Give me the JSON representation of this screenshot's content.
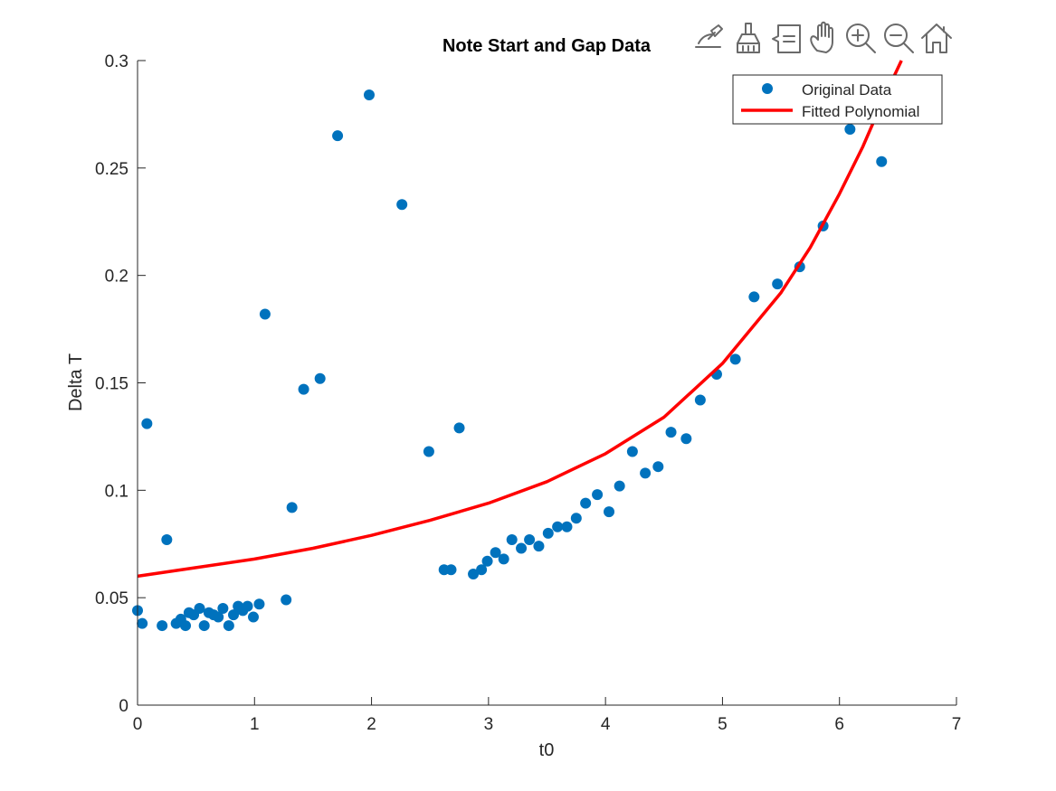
{
  "chart_data": {
    "type": "scatter",
    "title": "Note Start and Gap Data",
    "xlabel": "t0",
    "ylabel": "Delta T",
    "xlim": [
      0,
      7
    ],
    "ylim": [
      0,
      0.3
    ],
    "xticks": [
      "0",
      "1",
      "2",
      "3",
      "4",
      "5",
      "6",
      "7"
    ],
    "yticks": [
      "0",
      "0.05",
      "0.1",
      "0.15",
      "0.2",
      "0.25",
      "0.3"
    ],
    "legend_position": "top-right",
    "series": [
      {
        "name": "Original Data",
        "style": "markers",
        "color": "#0072BD",
        "points": [
          [
            0.0,
            0.044
          ],
          [
            0.04,
            0.038
          ],
          [
            0.08,
            0.131
          ],
          [
            0.21,
            0.037
          ],
          [
            0.25,
            0.077
          ],
          [
            0.33,
            0.038
          ],
          [
            0.37,
            0.04
          ],
          [
            0.41,
            0.037
          ],
          [
            0.44,
            0.043
          ],
          [
            0.48,
            0.042
          ],
          [
            0.53,
            0.045
          ],
          [
            0.57,
            0.037
          ],
          [
            0.61,
            0.043
          ],
          [
            0.65,
            0.042
          ],
          [
            0.69,
            0.041
          ],
          [
            0.73,
            0.045
          ],
          [
            0.78,
            0.037
          ],
          [
            0.82,
            0.042
          ],
          [
            0.86,
            0.046
          ],
          [
            0.9,
            0.044
          ],
          [
            0.94,
            0.046
          ],
          [
            0.99,
            0.041
          ],
          [
            1.04,
            0.047
          ],
          [
            1.09,
            0.182
          ],
          [
            1.27,
            0.049
          ],
          [
            1.32,
            0.092
          ],
          [
            1.42,
            0.147
          ],
          [
            1.56,
            0.152
          ],
          [
            1.71,
            0.265
          ],
          [
            1.98,
            0.284
          ],
          [
            2.26,
            0.233
          ],
          [
            2.49,
            0.118
          ],
          [
            2.62,
            0.063
          ],
          [
            2.68,
            0.063
          ],
          [
            2.75,
            0.129
          ],
          [
            2.87,
            0.061
          ],
          [
            2.94,
            0.063
          ],
          [
            2.99,
            0.067
          ],
          [
            3.06,
            0.071
          ],
          [
            3.13,
            0.068
          ],
          [
            3.2,
            0.077
          ],
          [
            3.28,
            0.073
          ],
          [
            3.35,
            0.077
          ],
          [
            3.43,
            0.074
          ],
          [
            3.51,
            0.08
          ],
          [
            3.59,
            0.083
          ],
          [
            3.67,
            0.083
          ],
          [
            3.75,
            0.087
          ],
          [
            3.83,
            0.094
          ],
          [
            3.93,
            0.098
          ],
          [
            4.03,
            0.09
          ],
          [
            4.12,
            0.102
          ],
          [
            4.23,
            0.118
          ],
          [
            4.34,
            0.108
          ],
          [
            4.45,
            0.111
          ],
          [
            4.56,
            0.127
          ],
          [
            4.69,
            0.124
          ],
          [
            4.81,
            0.142
          ],
          [
            4.95,
            0.154
          ],
          [
            5.11,
            0.161
          ],
          [
            5.27,
            0.19
          ],
          [
            5.47,
            0.196
          ],
          [
            5.66,
            0.204
          ],
          [
            5.86,
            0.223
          ],
          [
            6.09,
            0.268
          ],
          [
            6.36,
            0.253
          ]
        ]
      },
      {
        "name": "Fitted Polynomial",
        "style": "line",
        "color": "#FF0000",
        "points": [
          [
            0.0,
            0.06
          ],
          [
            0.5,
            0.064
          ],
          [
            1.0,
            0.068
          ],
          [
            1.5,
            0.073
          ],
          [
            2.0,
            0.079
          ],
          [
            2.5,
            0.086
          ],
          [
            3.0,
            0.094
          ],
          [
            3.5,
            0.104
          ],
          [
            4.0,
            0.117
          ],
          [
            4.5,
            0.134
          ],
          [
            5.0,
            0.159
          ],
          [
            5.5,
            0.192
          ],
          [
            5.75,
            0.213
          ],
          [
            6.0,
            0.238
          ],
          [
            6.2,
            0.26
          ],
          [
            6.4,
            0.285
          ],
          [
            6.53,
            0.3
          ]
        ]
      }
    ]
  },
  "toolbar": {
    "buttons": [
      "edit-icon",
      "brush-icon",
      "datatip-icon",
      "pan-icon",
      "zoom-in-icon",
      "zoom-out-icon",
      "home-icon"
    ]
  }
}
